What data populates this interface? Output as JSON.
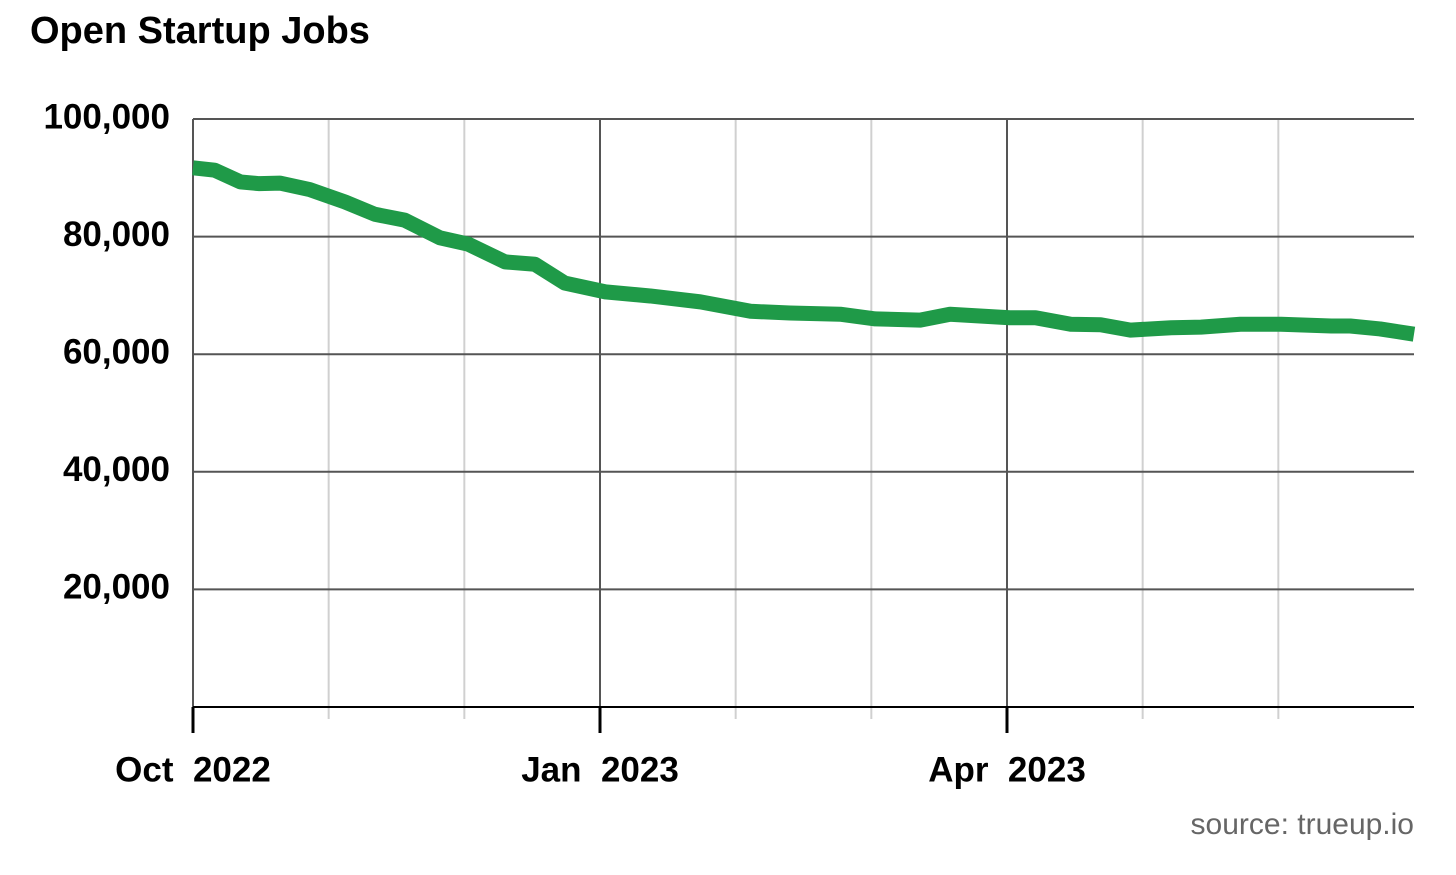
{
  "chart_data": {
    "type": "line",
    "title": "Open Startup Jobs",
    "source": "source: trueup.io",
    "x": [
      0,
      0.16,
      0.35,
      0.49,
      0.64,
      0.86,
      1.12,
      1.34,
      1.56,
      1.82,
      2.03,
      2.3,
      2.52,
      2.74,
      3.04,
      3.37,
      3.74,
      4.11,
      4.4,
      4.77,
      5.03,
      5.36,
      5.58,
      6.02,
      6.21,
      6.47,
      6.69,
      6.91,
      7.21,
      7.43,
      7.72,
      8.02,
      8.39,
      8.53,
      8.75,
      9
    ],
    "series": [
      {
        "name": "Open startup jobs",
        "color": "#1f9a48",
        "values": [
          91700,
          91300,
          89300,
          89000,
          89100,
          88000,
          85900,
          83800,
          82800,
          79800,
          78700,
          75700,
          75300,
          72100,
          70600,
          69900,
          68900,
          67300,
          67000,
          66800,
          66000,
          65800,
          66800,
          66200,
          66200,
          65100,
          65000,
          64100,
          64500,
          64600,
          65100,
          65100,
          64800,
          64800,
          64300,
          63400
        ]
      }
    ],
    "xlim": [
      0,
      9
    ],
    "xticks": [
      {
        "value": 0,
        "label": "Oct  2022"
      },
      {
        "value": 3,
        "label": "Jan  2023"
      },
      {
        "value": 6,
        "label": "Apr  2023"
      }
    ],
    "xminorticks": [
      1,
      2,
      4,
      5,
      7,
      8
    ],
    "ylim": [
      0,
      100000
    ],
    "yticks": [
      {
        "value": 20000,
        "label": "20,000"
      },
      {
        "value": 40000,
        "label": "40,000"
      },
      {
        "value": 60000,
        "label": "60,000"
      },
      {
        "value": 80000,
        "label": "80,000"
      },
      {
        "value": 100000,
        "label": "100,000"
      }
    ],
    "grid": true
  }
}
